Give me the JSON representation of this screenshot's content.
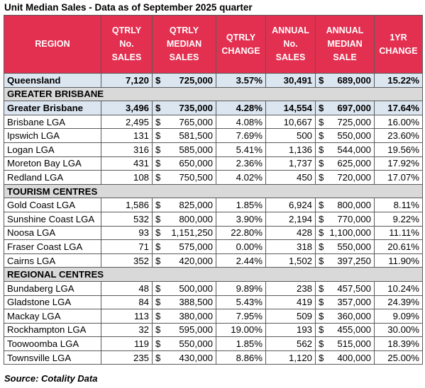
{
  "title": "Unit Median Sales - Data as of September 2025 quarter",
  "headers": [
    "REGION",
    "QTRLY No. SALES",
    "QTRLY MEDIAN SALES",
    "QTRLY CHANGE",
    "ANNUAL No. SALES",
    "ANNUAL MEDIAN SALE",
    "1YR CHANGE"
  ],
  "header_lines": [
    [
      "REGION"
    ],
    [
      "QTRLY",
      "No.",
      "SALES"
    ],
    [
      "QTRLY",
      "MEDIAN",
      "SALES"
    ],
    [
      "QTRLY",
      "CHANGE"
    ],
    [
      "ANNUAL",
      "No.",
      "SALES"
    ],
    [
      "ANNUAL",
      "MEDIAN",
      "SALE"
    ],
    [
      "1YR",
      "CHANGE"
    ]
  ],
  "currency_symbol": "$",
  "colors": {
    "header_bg": "#e32f50",
    "highlight_bg": "#dce6f1",
    "section_bg": "#d9d9d9"
  },
  "rows": [
    {
      "type": "highlight",
      "region": "Queensland",
      "qtrly_sales": "7,120",
      "qtrly_median": "725,000",
      "qtrly_change": "3.57%",
      "annual_sales": "30,491",
      "annual_median": "689,000",
      "yr_change": "15.22%"
    },
    {
      "type": "section",
      "label": "GREATER BRISBANE"
    },
    {
      "type": "highlight",
      "region": "Greater Brisbane",
      "qtrly_sales": "3,496",
      "qtrly_median": "735,000",
      "qtrly_change": "4.28%",
      "annual_sales": "14,554",
      "annual_median": "697,000",
      "yr_change": "17.64%"
    },
    {
      "type": "data",
      "region": "Brisbane LGA",
      "qtrly_sales": "2,495",
      "qtrly_median": "765,000",
      "qtrly_change": "4.08%",
      "annual_sales": "10,667",
      "annual_median": "725,000",
      "yr_change": "16.00%"
    },
    {
      "type": "data",
      "region": "Ipswich LGA",
      "qtrly_sales": "131",
      "qtrly_median": "581,500",
      "qtrly_change": "7.69%",
      "annual_sales": "500",
      "annual_median": "550,000",
      "yr_change": "23.60%"
    },
    {
      "type": "data",
      "region": "Logan LGA",
      "qtrly_sales": "316",
      "qtrly_median": "585,000",
      "qtrly_change": "5.41%",
      "annual_sales": "1,136",
      "annual_median": "544,000",
      "yr_change": "19.56%"
    },
    {
      "type": "data",
      "region": "Moreton Bay LGA",
      "qtrly_sales": "431",
      "qtrly_median": "650,000",
      "qtrly_change": "2.36%",
      "annual_sales": "1,737",
      "annual_median": "625,000",
      "yr_change": "17.92%"
    },
    {
      "type": "data",
      "region": "Redland LGA",
      "qtrly_sales": "108",
      "qtrly_median": "750,500",
      "qtrly_change": "4.02%",
      "annual_sales": "450",
      "annual_median": "720,000",
      "yr_change": "17.07%"
    },
    {
      "type": "section",
      "label": "TOURISM CENTRES"
    },
    {
      "type": "data",
      "region": "Gold Coast LGA",
      "qtrly_sales": "1,586",
      "qtrly_median": "825,000",
      "qtrly_change": "1.85%",
      "annual_sales": "6,924",
      "annual_median": "800,000",
      "yr_change": "8.11%"
    },
    {
      "type": "data",
      "region": "Sunshine Coast LGA",
      "qtrly_sales": "532",
      "qtrly_median": "800,000",
      "qtrly_change": "3.90%",
      "annual_sales": "2,194",
      "annual_median": "770,000",
      "yr_change": "9.22%"
    },
    {
      "type": "data",
      "region": "Noosa LGA",
      "qtrly_sales": "93",
      "qtrly_median": "1,151,250",
      "qtrly_change": "22.80%",
      "annual_sales": "428",
      "annual_median": "1,100,000",
      "yr_change": "11.11%"
    },
    {
      "type": "data",
      "region": "Fraser Coast LGA",
      "qtrly_sales": "71",
      "qtrly_median": "575,000",
      "qtrly_change": "0.00%",
      "annual_sales": "318",
      "annual_median": "550,000",
      "yr_change": "20.61%"
    },
    {
      "type": "data",
      "region": "Cairns LGA",
      "qtrly_sales": "352",
      "qtrly_median": "420,000",
      "qtrly_change": "2.44%",
      "annual_sales": "1,502",
      "annual_median": "397,250",
      "yr_change": "11.90%"
    },
    {
      "type": "section",
      "label": "REGIONAL CENTRES"
    },
    {
      "type": "data",
      "region": "Bundaberg LGA",
      "qtrly_sales": "48",
      "qtrly_median": "500,000",
      "qtrly_change": "9.89%",
      "annual_sales": "238",
      "annual_median": "457,500",
      "yr_change": "10.24%"
    },
    {
      "type": "data",
      "region": "Gladstone LGA",
      "qtrly_sales": "84",
      "qtrly_median": "388,500",
      "qtrly_change": "5.43%",
      "annual_sales": "419",
      "annual_median": "357,000",
      "yr_change": "24.39%"
    },
    {
      "type": "data",
      "region": "Mackay LGA",
      "qtrly_sales": "113",
      "qtrly_median": "380,000",
      "qtrly_change": "7.95%",
      "annual_sales": "509",
      "annual_median": "360,000",
      "yr_change": "9.09%"
    },
    {
      "type": "data",
      "region": "Rockhampton LGA",
      "qtrly_sales": "32",
      "qtrly_median": "595,000",
      "qtrly_change": "19.00%",
      "annual_sales": "193",
      "annual_median": "455,000",
      "yr_change": "30.00%"
    },
    {
      "type": "data",
      "region": "Toowoomba LGA",
      "qtrly_sales": "119",
      "qtrly_median": "550,000",
      "qtrly_change": "1.85%",
      "annual_sales": "562",
      "annual_median": "515,000",
      "yr_change": "18.39%"
    },
    {
      "type": "data",
      "region": "Townsville LGA",
      "qtrly_sales": "235",
      "qtrly_median": "430,000",
      "qtrly_change": "8.86%",
      "annual_sales": "1,120",
      "annual_median": "400,000",
      "yr_change": "25.00%"
    }
  ],
  "source": "Source: Cotality Data"
}
